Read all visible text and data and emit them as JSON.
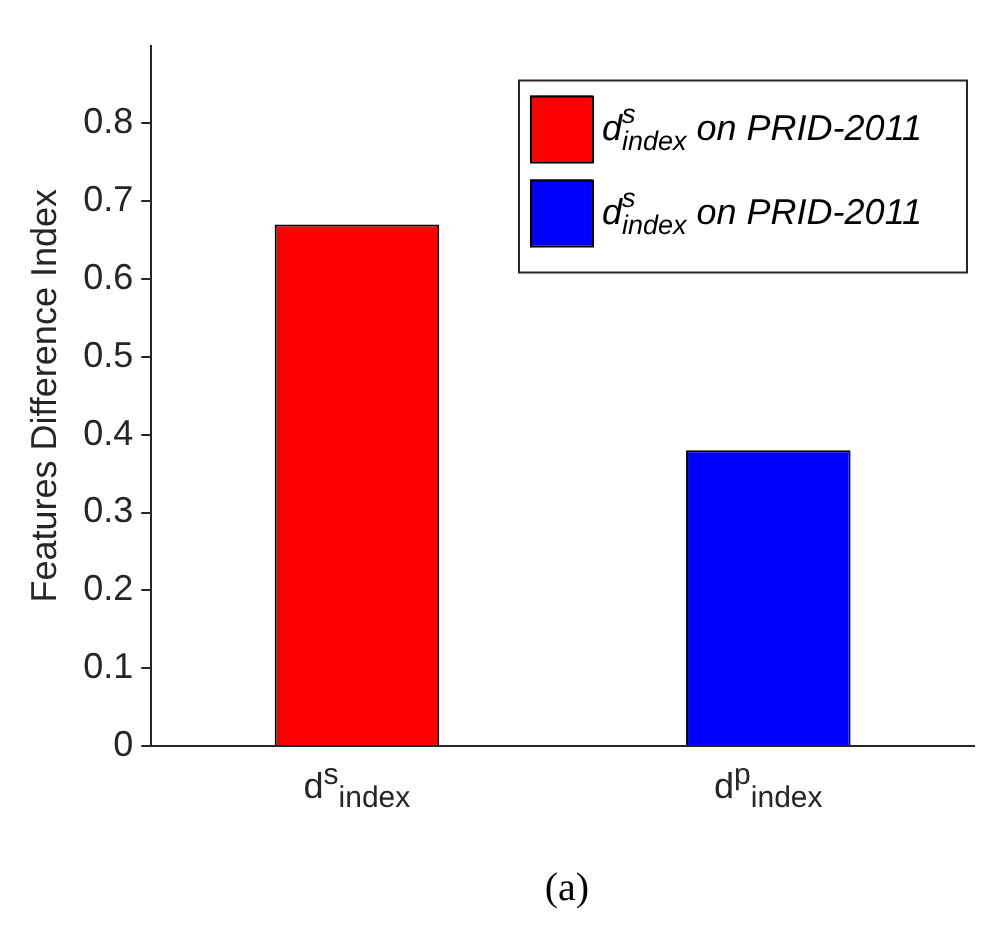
{
  "chart_data": {
    "type": "bar",
    "ylabel": "Features Difference Index",
    "categories": [
      "d$^{s}$$_{index}$",
      "d$^{p}$$_{index}$"
    ],
    "series": [
      {
        "name": "d$^{s}$$_{index}$ on PRID-2011",
        "color": "#ff0000",
        "values": [
          0.67,
          null
        ]
      },
      {
        "name": "d$^{s}$$_{index}$ on PRID-2011",
        "color": "#0000ff",
        "values": [
          null,
          0.38
        ]
      }
    ],
    "ylim": [
      0,
      0.9
    ],
    "yticks": [
      0,
      0.1,
      0.2,
      0.3,
      0.4,
      0.5,
      0.6,
      0.7,
      0.8
    ],
    "grid": false,
    "legend": "top right",
    "annotations": [
      "(a)"
    ]
  }
}
